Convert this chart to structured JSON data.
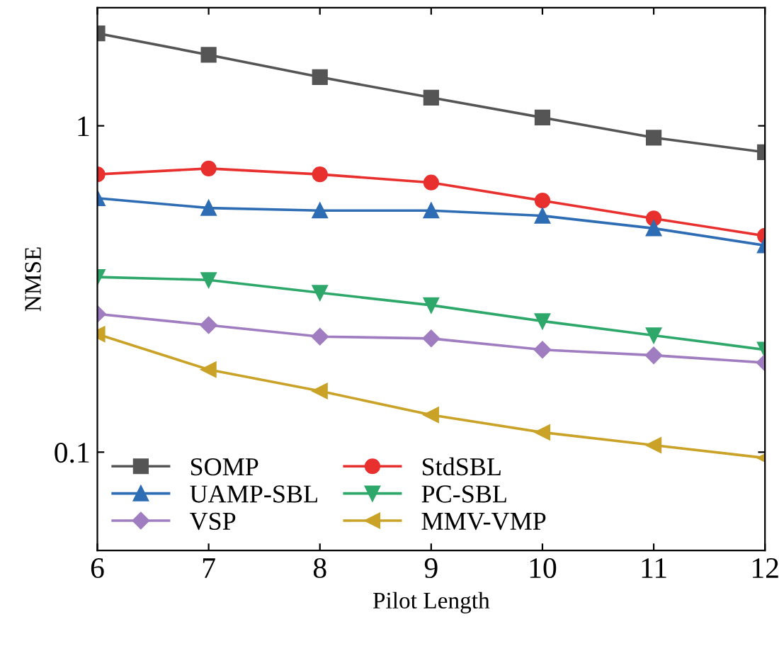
{
  "chart_data": {
    "type": "line",
    "xlabel": "Pilot Length",
    "ylabel": "NMSE",
    "log": "y",
    "x": [
      6,
      7,
      8,
      9,
      10,
      11,
      12
    ],
    "xlim": [
      6,
      12
    ],
    "xticks": [
      6,
      7,
      8,
      9,
      10,
      11,
      12
    ],
    "ylim": [
      0.05,
      2.3
    ],
    "yticks": [
      0.1,
      1
    ],
    "grid": false,
    "legend": "bottom left",
    "line_style": "solid",
    "series": [
      {
        "name": "SOMP",
        "color": "#555555",
        "marker": "square",
        "values": [
          1.92,
          1.65,
          1.41,
          1.22,
          1.06,
          0.92,
          0.83
        ]
      },
      {
        "name": "StdSBL",
        "color": "#e8302e",
        "marker": "circle",
        "values": [
          0.71,
          0.74,
          0.71,
          0.67,
          0.59,
          0.52,
          0.46
        ]
      },
      {
        "name": "UAMP-SBL",
        "color": "#2e6db4",
        "marker": "triangle",
        "values": [
          0.6,
          0.56,
          0.55,
          0.55,
          0.53,
          0.485,
          0.43
        ]
      },
      {
        "name": "PC-SBL",
        "color": "#2ea86a",
        "marker": "triangle-down",
        "values": [
          0.344,
          0.337,
          0.308,
          0.282,
          0.252,
          0.228,
          0.206
        ]
      },
      {
        "name": "VSP",
        "color": "#a07cc0",
        "marker": "diamond",
        "values": [
          0.265,
          0.245,
          0.226,
          0.223,
          0.206,
          0.198,
          0.188
        ]
      },
      {
        "name": "MMV-VMP",
        "color": "#c9a227",
        "marker": "triangle-left",
        "values": [
          0.23,
          0.179,
          0.154,
          0.13,
          0.115,
          0.105,
          0.096
        ]
      }
    ]
  }
}
